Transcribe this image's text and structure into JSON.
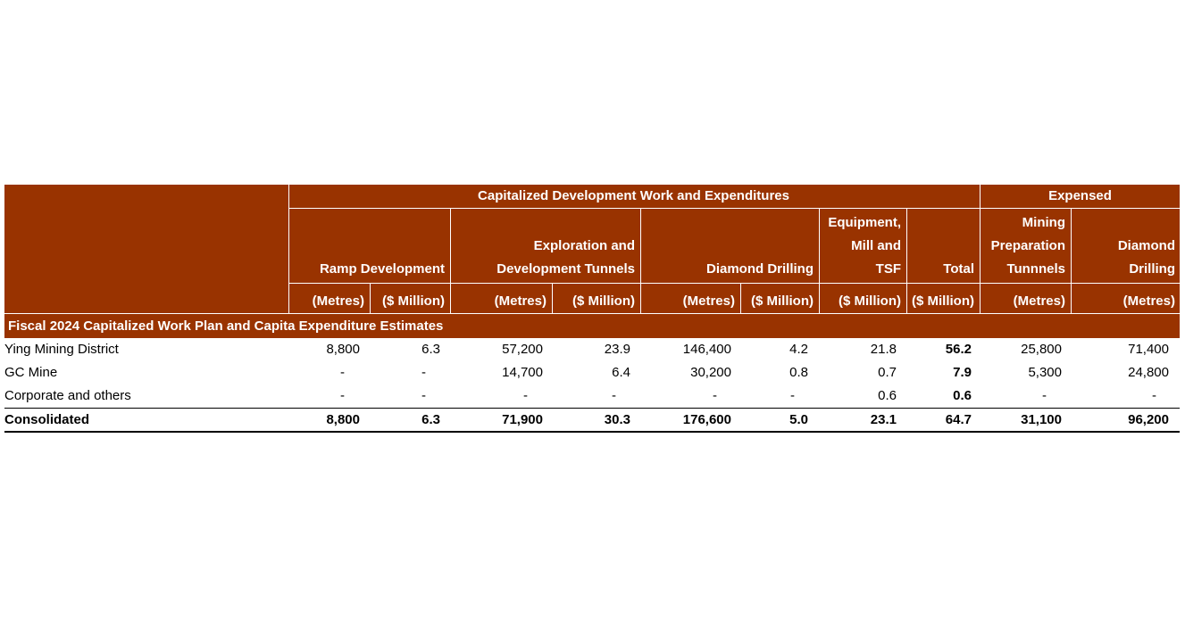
{
  "header": {
    "capitalized_group": "Capitalized Development Work and Expenditures",
    "expensed_group": "Expensed",
    "col_ramp": "Ramp Development",
    "col_expl_1": "Exploration and",
    "col_expl_2": "Development Tunnels",
    "col_diamond": "Diamond Drilling",
    "col_equip_1": "Equipment,",
    "col_equip_2": "Mill and",
    "col_equip_3": "TSF",
    "col_total": "Total",
    "col_mining_1": "Mining",
    "col_mining_2": "Preparation",
    "col_mining_3": "Tunnnels",
    "col_exp_diamond_1": "Diamond",
    "col_exp_diamond_2": "Drilling"
  },
  "units": [
    "(Metres)",
    "($ Million)",
    "(Metres)",
    "($ Million)",
    "(Metres)",
    "($ Million)",
    "($ Million)",
    "($ Million)",
    "(Metres)",
    "(Metres)"
  ],
  "section_title": "Fiscal 2024 Capitalized Work Plan and Capita Expenditure Estimates",
  "rows": [
    {
      "label": "Ying Mining District",
      "values": [
        "8,800",
        "6.3",
        "57,200",
        "23.9",
        "146,400",
        "4.2",
        "21.8",
        "56.2",
        "25,800",
        "71,400"
      ]
    },
    {
      "label": "GC Mine",
      "values": [
        "-",
        "-",
        "14,700",
        "6.4",
        "30,200",
        "0.8",
        "0.7",
        "7.9",
        "5,300",
        "24,800"
      ]
    },
    {
      "label": "Corporate and others",
      "values": [
        "-",
        "-",
        "-",
        "-",
        "-",
        "-",
        "0.6",
        "0.6",
        "-",
        "-"
      ]
    },
    {
      "label": "Consolidated",
      "values": [
        "8,800",
        "6.3",
        "71,900",
        "30.3",
        "176,600",
        "5.0",
        "23.1",
        "64.7",
        "31,100",
        "96,200"
      ]
    }
  ],
  "colors": {
    "header_bg": "#993300",
    "header_text": "#ffffff",
    "body_text": "#000000"
  }
}
